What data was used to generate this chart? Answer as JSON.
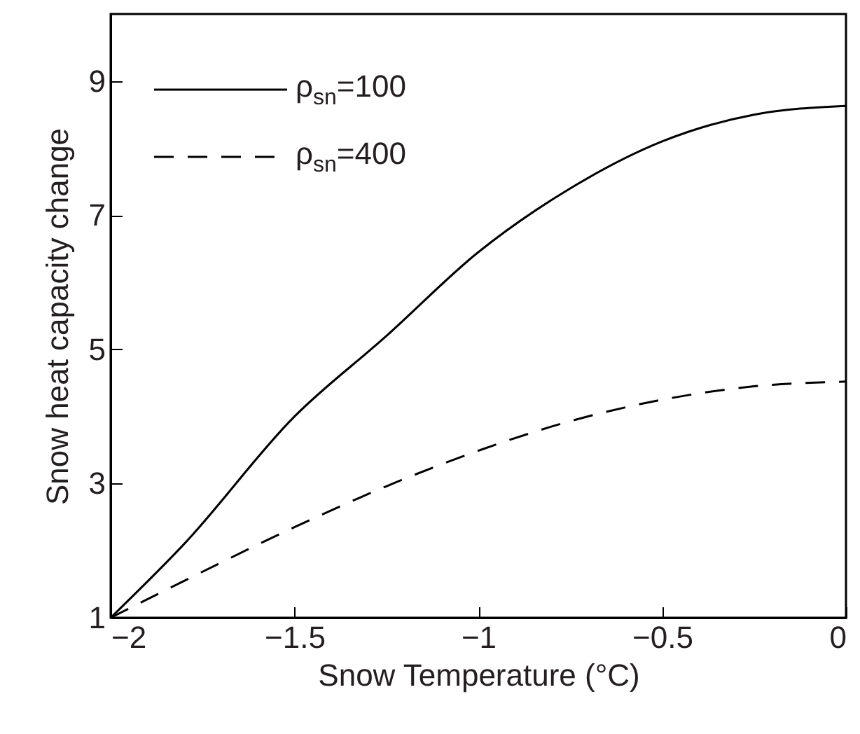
{
  "chart_data": {
    "type": "line",
    "xlabel": "Snow Temperature (°C)",
    "ylabel": "Snow heat capacity change",
    "x": [
      -2,
      -1.8,
      -1.5,
      -1.25,
      -1,
      -0.75,
      -0.5,
      -0.25,
      0
    ],
    "series": [
      {
        "name": "ρ$_{sn}$=100",
        "color": "#000000",
        "line_style": "solid",
        "values": [
          1,
          2.1,
          4.0,
          5.2,
          6.45,
          7.4,
          8.1,
          8.5,
          8.63
        ]
      },
      {
        "name": "ρ$_{sn}$=400",
        "color": "#000000",
        "line_style": "dashed",
        "values": [
          1,
          1.55,
          2.35,
          2.96,
          3.49,
          3.93,
          4.25,
          4.45,
          4.52
        ]
      }
    ],
    "xlim": [
      -2,
      0
    ],
    "xticks": [
      -2,
      -1.5,
      -1,
      -0.5,
      0
    ],
    "ylim": [
      1,
      10
    ],
    "yticks": [
      1,
      3,
      5,
      7,
      9
    ],
    "legend": "top left",
    "marker": "none",
    "grid": false
  }
}
